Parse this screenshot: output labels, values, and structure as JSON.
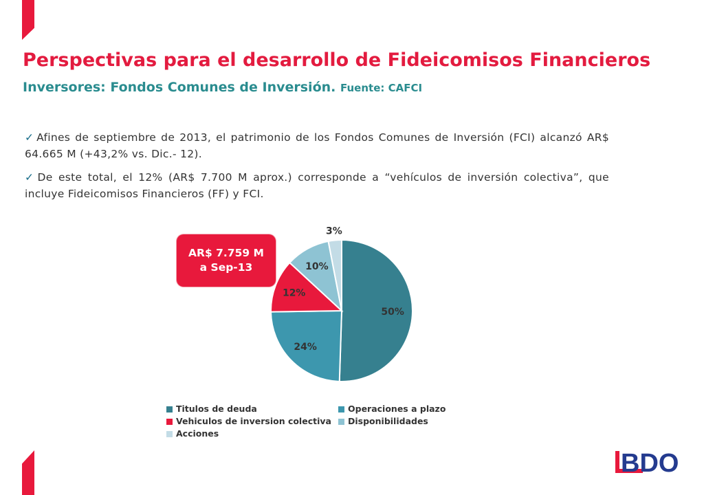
{
  "header": {
    "title": "Perspectivas para el desarrollo de Fideicomisos Financieros",
    "subtitle": "Inversores: Fondos Comunes de Inversión.",
    "source": "Fuente: CAFCI"
  },
  "bullets": [
    "Afines de septiembre de 2013, el patrimonio de los Fondos Comunes de Inversión (FCI) alcanzó AR$ 64.665 M (+43,2% vs. Dic.- 12).",
    "De este total, el 12% (AR$ 7.700 M aprox.) corresponde a “vehículos de inversión colectiva”, que incluye Fideicomisos Financieros (FF) y FCI."
  ],
  "callout": {
    "line1": "AR$ 7.759  M",
    "line2": "a Sep-13"
  },
  "colors": {
    "accent": "#e8193c",
    "title": "#e31b3f",
    "subtitle": "#2a8c8f",
    "bdo_blue": "#243b8f"
  },
  "icons": {
    "bullet": "checkmark-icon",
    "logo": "bdo-logo"
  },
  "logo_text": "BDO",
  "chart_data": {
    "type": "pie",
    "series": [
      {
        "name": "Titulos de deuda",
        "value": 50,
        "label": "50%",
        "color": "#36808f"
      },
      {
        "name": "Operaciones a plazo",
        "value": 24,
        "label": "24%",
        "color": "#3d97ae"
      },
      {
        "name": "Vehiculos de inversion colectiva",
        "value": 12,
        "label": "12%",
        "color": "#e8193c"
      },
      {
        "name": "Disponibilidades",
        "value": 10,
        "label": "10%",
        "color": "#8ec3d3"
      },
      {
        "name": "Acciones",
        "value": 3,
        "label": "3%",
        "color": "#c3dce6"
      }
    ],
    "legend_position": "bottom"
  }
}
